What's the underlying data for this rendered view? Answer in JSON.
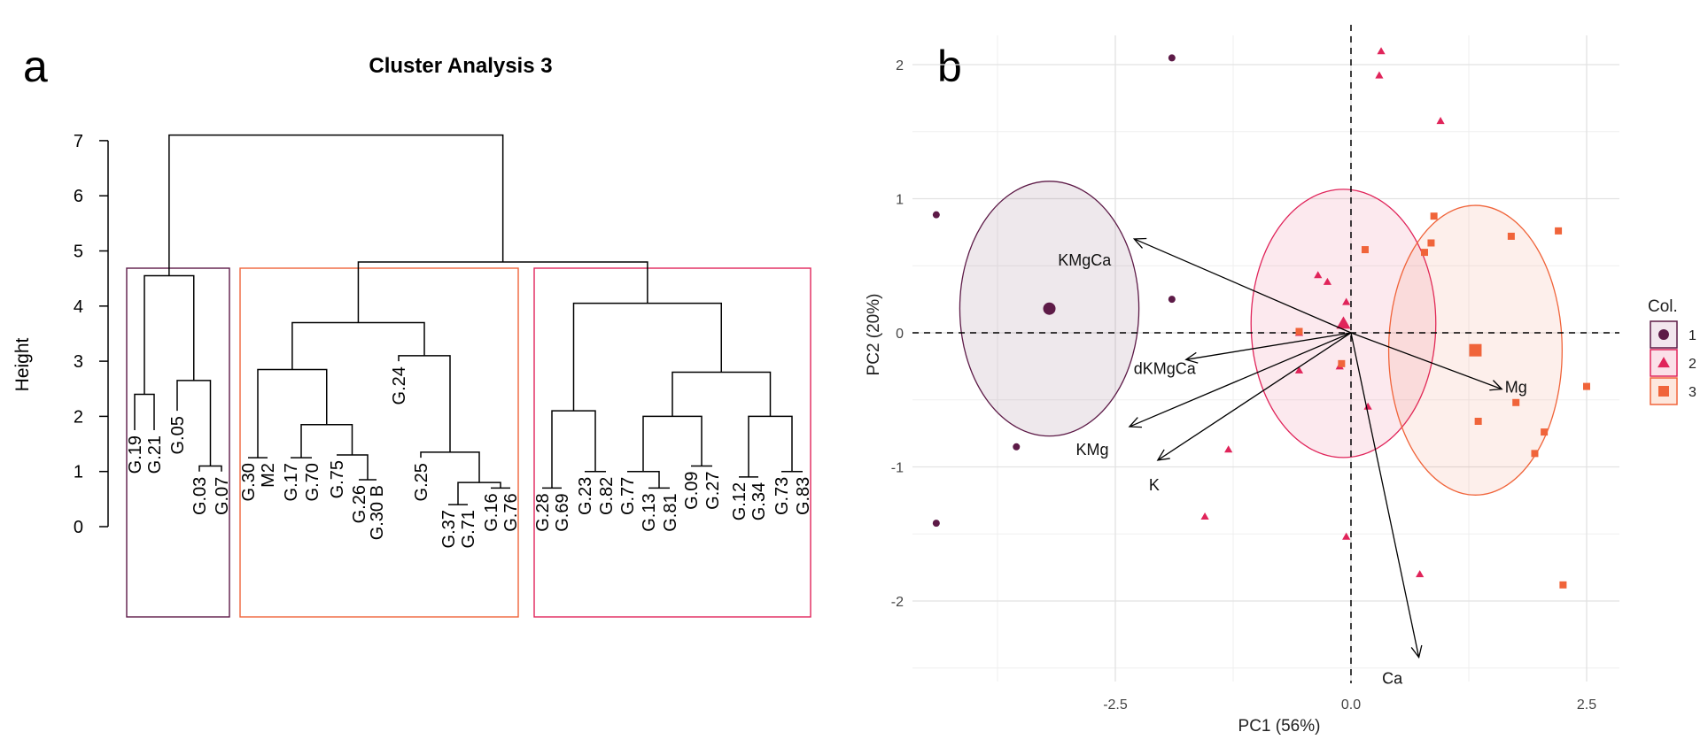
{
  "panel_labels": {
    "a": "a",
    "b": "b"
  },
  "chart_data": [
    {
      "type": "dendrogram",
      "title": "Cluster Analysis 3",
      "ylabel": "Height",
      "ylim": [
        0,
        7
      ],
      "yticks": [
        0,
        1,
        2,
        3,
        4,
        5,
        6,
        7
      ],
      "leaves": [
        {
          "label": "G.19",
          "cluster": 1
        },
        {
          "label": "G.21",
          "cluster": 1
        },
        {
          "label": "G.05",
          "cluster": 1
        },
        {
          "label": "G.03",
          "cluster": 1
        },
        {
          "label": "G.07",
          "cluster": 1
        },
        {
          "label": "G.30",
          "cluster": 3
        },
        {
          "label": "M2",
          "cluster": 3
        },
        {
          "label": "G.17",
          "cluster": 3
        },
        {
          "label": "G.70",
          "cluster": 3
        },
        {
          "label": "G.75",
          "cluster": 3
        },
        {
          "label": "G.26",
          "cluster": 3
        },
        {
          "label": "G.30 B",
          "cluster": 3
        },
        {
          "label": "G.24",
          "cluster": 3
        },
        {
          "label": "G.25",
          "cluster": 3
        },
        {
          "label": "G.37",
          "cluster": 3
        },
        {
          "label": "G.71",
          "cluster": 3
        },
        {
          "label": "G.16",
          "cluster": 3
        },
        {
          "label": "G.76",
          "cluster": 3
        },
        {
          "label": "G.28",
          "cluster": 2
        },
        {
          "label": "G.69",
          "cluster": 2
        },
        {
          "label": "G.23",
          "cluster": 2
        },
        {
          "label": "G.82",
          "cluster": 2
        },
        {
          "label": "G.77",
          "cluster": 2
        },
        {
          "label": "G.13",
          "cluster": 2
        },
        {
          "label": "G.81",
          "cluster": 2
        },
        {
          "label": "G.09",
          "cluster": 2
        },
        {
          "label": "G.27",
          "cluster": 2
        },
        {
          "label": "G.12",
          "cluster": 2
        },
        {
          "label": "G.34",
          "cluster": 2
        },
        {
          "label": "G.73",
          "cluster": 2
        },
        {
          "label": "G.83",
          "cluster": 2
        }
      ],
      "leaf_tops": [
        1.75,
        1.75,
        2.1,
        1.0,
        1.0,
        1.25,
        1.25,
        1.25,
        1.25,
        1.3,
        0.85,
        0.85,
        3.0,
        1.25,
        0.4,
        0.4,
        0.7,
        0.7,
        0.7,
        0.7,
        1.0,
        1.0,
        1.0,
        0.7,
        0.7,
        1.1,
        1.1,
        0.9,
        0.9,
        1.0,
        1.0
      ],
      "merges": [
        {
          "left": 0,
          "right": 1,
          "height": 2.4
        },
        {
          "left": 3,
          "right": 4,
          "height": 1.1
        },
        {
          "left": 2,
          "right": -2,
          "height": 2.65
        },
        {
          "left": -1,
          "right": -3,
          "height": 4.55
        },
        {
          "left": 5,
          "right": 6,
          "height": 1.25
        },
        {
          "left": 7,
          "right": 8,
          "height": 1.25
        },
        {
          "left": 10,
          "right": 11,
          "height": 0.85
        },
        {
          "left": 9,
          "right": -7,
          "height": 1.3
        },
        {
          "left": -6,
          "right": -8,
          "height": 1.85
        },
        {
          "left": -5,
          "right": -9,
          "height": 2.85
        },
        {
          "left": 14,
          "right": 15,
          "height": 0.4
        },
        {
          "left": 16,
          "right": 17,
          "height": 0.7
        },
        {
          "left": -11,
          "right": -12,
          "height": 0.8
        },
        {
          "left": 13,
          "right": -13,
          "height": 1.35
        },
        {
          "left": 12,
          "right": -14,
          "height": 3.1
        },
        {
          "left": -10,
          "right": -15,
          "height": 3.7
        },
        {
          "left": 18,
          "right": 19,
          "height": 0.7
        },
        {
          "left": 20,
          "right": 21,
          "height": 1.0
        },
        {
          "left": -17,
          "right": -18,
          "height": 2.1
        },
        {
          "left": 23,
          "right": 24,
          "height": 0.7
        },
        {
          "left": 22,
          "right": -20,
          "height": 1.0
        },
        {
          "left": 25,
          "right": 26,
          "height": 1.1
        },
        {
          "left": -21,
          "right": -22,
          "height": 2.0
        },
        {
          "left": 27,
          "right": 28,
          "height": 0.9
        },
        {
          "left": 29,
          "right": 30,
          "height": 1.0
        },
        {
          "left": -24,
          "right": -25,
          "height": 2.0
        },
        {
          "left": -23,
          "right": -26,
          "height": 2.8
        },
        {
          "left": -19,
          "right": -27,
          "height": 4.05
        },
        {
          "left": -16,
          "right": -28,
          "height": 4.8
        },
        {
          "left": -4,
          "right": -29,
          "height": 7.1
        }
      ],
      "cluster_boxes": [
        {
          "cluster": 1,
          "first_leaf": 0,
          "last_leaf": 4,
          "color": "#5d1a47"
        },
        {
          "cluster": 3,
          "first_leaf": 5,
          "last_leaf": 17,
          "color": "#f0643a"
        },
        {
          "cluster": 2,
          "first_leaf": 18,
          "last_leaf": 30,
          "color": "#e0245a"
        }
      ]
    },
    {
      "type": "scatter",
      "subtype": "pca-biplot",
      "xlabel": "PC1 (56%)",
      "ylabel": "PC2 (20%)",
      "xlim": [
        -4.6,
        2.8
      ],
      "ylim": [
        -2.65,
        2.2
      ],
      "xticks": [
        -2.5,
        0.0,
        2.5
      ],
      "xtick_labels": [
        "-2.5",
        "0.0",
        "2.5"
      ],
      "yticks": [
        -2,
        -1,
        0,
        1,
        2
      ],
      "yticks_labels": [
        "-2",
        "-1",
        "0",
        "1",
        "2"
      ],
      "legend": {
        "title": "Col.",
        "position": "right",
        "entries": [
          {
            "label": "1",
            "shape": "circle",
            "color": "#5d1a47",
            "fill": "#f2e6ee"
          },
          {
            "label": "2",
            "shape": "triangle",
            "color": "#e0245a",
            "fill": "#fbe0e8"
          },
          {
            "label": "3",
            "shape": "square",
            "color": "#f0643a",
            "fill": "#fde7dd"
          }
        ]
      },
      "series": [
        {
          "name": "1",
          "shape": "circle",
          "color": "#5d1a47",
          "points": [
            [
              -1.9,
              2.05
            ],
            [
              -4.4,
              0.88
            ],
            [
              -1.9,
              0.25
            ],
            [
              -3.55,
              -0.85
            ],
            [
              -4.4,
              -1.42
            ]
          ],
          "centroid": [
            -3.2,
            0.18
          ],
          "ellipse": {
            "cx": -3.2,
            "cy": 0.18,
            "rx": 0.95,
            "ry": 0.95
          }
        },
        {
          "name": "2",
          "shape": "triangle",
          "color": "#e0245a",
          "points": [
            [
              0.32,
              2.1
            ],
            [
              0.3,
              1.92
            ],
            [
              0.95,
              1.58
            ],
            [
              -0.35,
              0.43
            ],
            [
              -0.25,
              0.38
            ],
            [
              -0.05,
              0.23
            ],
            [
              -0.55,
              0.0
            ],
            [
              -0.12,
              -0.25
            ],
            [
              -0.55,
              -0.28
            ],
            [
              0.18,
              -0.55
            ],
            [
              -1.3,
              -0.87
            ],
            [
              -1.55,
              -1.37
            ],
            [
              -0.05,
              -1.52
            ],
            [
              0.73,
              -1.8
            ]
          ],
          "centroid": [
            -0.08,
            0.07
          ],
          "ellipse": {
            "cx": -0.08,
            "cy": 0.07,
            "rx": 0.98,
            "ry": 1.0
          }
        },
        {
          "name": "3",
          "shape": "square",
          "color": "#f0643a",
          "points": [
            [
              0.88,
              0.87
            ],
            [
              2.2,
              0.76
            ],
            [
              1.7,
              0.72
            ],
            [
              0.85,
              0.67
            ],
            [
              0.78,
              0.6
            ],
            [
              0.15,
              0.62
            ],
            [
              -0.55,
              0.01
            ],
            [
              -0.1,
              -0.23
            ],
            [
              2.5,
              -0.4
            ],
            [
              1.75,
              -0.52
            ],
            [
              1.35,
              -0.66
            ],
            [
              2.05,
              -0.74
            ],
            [
              1.95,
              -0.9
            ],
            [
              2.25,
              -1.88
            ]
          ],
          "centroid": [
            1.32,
            -0.13
          ],
          "ellipse": {
            "cx": 1.32,
            "cy": -0.13,
            "rx": 0.92,
            "ry": 1.08
          }
        }
      ],
      "loadings": [
        {
          "name": "KMgCa",
          "x": -2.3,
          "y": 0.7
        },
        {
          "name": "dKMgCa",
          "x": -1.75,
          "y": -0.2
        },
        {
          "name": "KMg",
          "x": -2.35,
          "y": -0.7
        },
        {
          "name": "K",
          "x": -2.05,
          "y": -0.95
        },
        {
          "name": "Mg",
          "x": 1.6,
          "y": -0.42
        },
        {
          "name": "Ca",
          "x": 0.72,
          "y": -2.42
        }
      ]
    }
  ]
}
